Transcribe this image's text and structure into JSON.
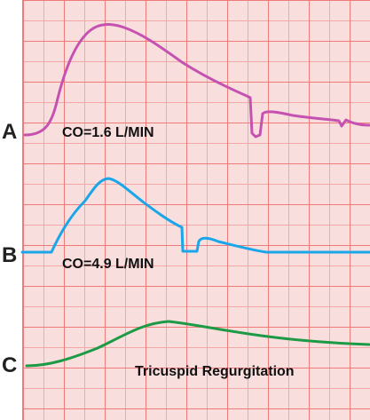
{
  "traces": [
    {
      "label": "A",
      "annotation": "CO=1.6 L/MIN",
      "color": "#c552b0"
    },
    {
      "label": "B",
      "annotation": "CO=4.9 L/MIN",
      "color": "#1aa6e8"
    },
    {
      "label": "C",
      "annotation": "Tricuspid Regurgitation",
      "color": "#1d9a45"
    }
  ],
  "grid": {
    "minor_color": "#f4a7a7",
    "major_color": "#ef7a7a",
    "background": "#f9dede"
  }
}
